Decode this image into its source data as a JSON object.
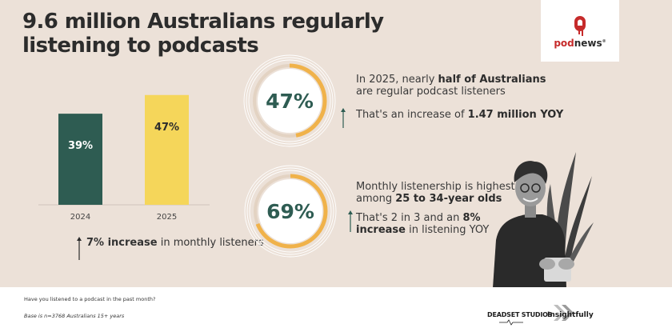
{
  "title": "9.6 million Australians regularly listening to podcasts",
  "logo": {
    "text_pod": "pod",
    "text_news": "news"
  },
  "chart_data": {
    "type": "bar",
    "categories": [
      "2024",
      "2025"
    ],
    "values": [
      39,
      47
    ],
    "value_labels": [
      "39%",
      "47%"
    ],
    "colors": [
      "#2e5c52",
      "#f5d65a"
    ],
    "label_colors": [
      "#ffffff",
      "#2c2c2c"
    ],
    "ylim": [
      0,
      50
    ],
    "title": "",
    "xlabel": "",
    "ylabel": ""
  },
  "bar_note": {
    "highlight": "7% increase",
    "rest": " in monthly listeners"
  },
  "stat1": {
    "value": 47,
    "label": "47%",
    "line1_pre": "In 2025, nearly ",
    "line1_bold": "half of Australians",
    "line2": "are regular podcast listeners",
    "line3_pre": "That's an increase of ",
    "line3_bold": "1.47 million YOY"
  },
  "stat2": {
    "value": 69,
    "label": "69%",
    "line1": "Monthly listenership is highest",
    "line2_pre": "among ",
    "line2_bold": "25 to 34-year olds",
    "line3_pre": "That's 2 in 3 and an ",
    "line3_bold": "8%",
    "line4_bold": "increase",
    "line4_rest": " in listening YOY"
  },
  "colors": {
    "background": "#ece1d8",
    "accent": "#f0b24a",
    "ring_text": "#2e5c52",
    "arrow": "#2e5c52"
  },
  "footer": {
    "question": "Have you listened to a podcast in the past month?",
    "base": "Base is n=3768 Australians 15+ years",
    "brand1": "DEADSET STUDIOS",
    "brand2": "Insightfully"
  }
}
